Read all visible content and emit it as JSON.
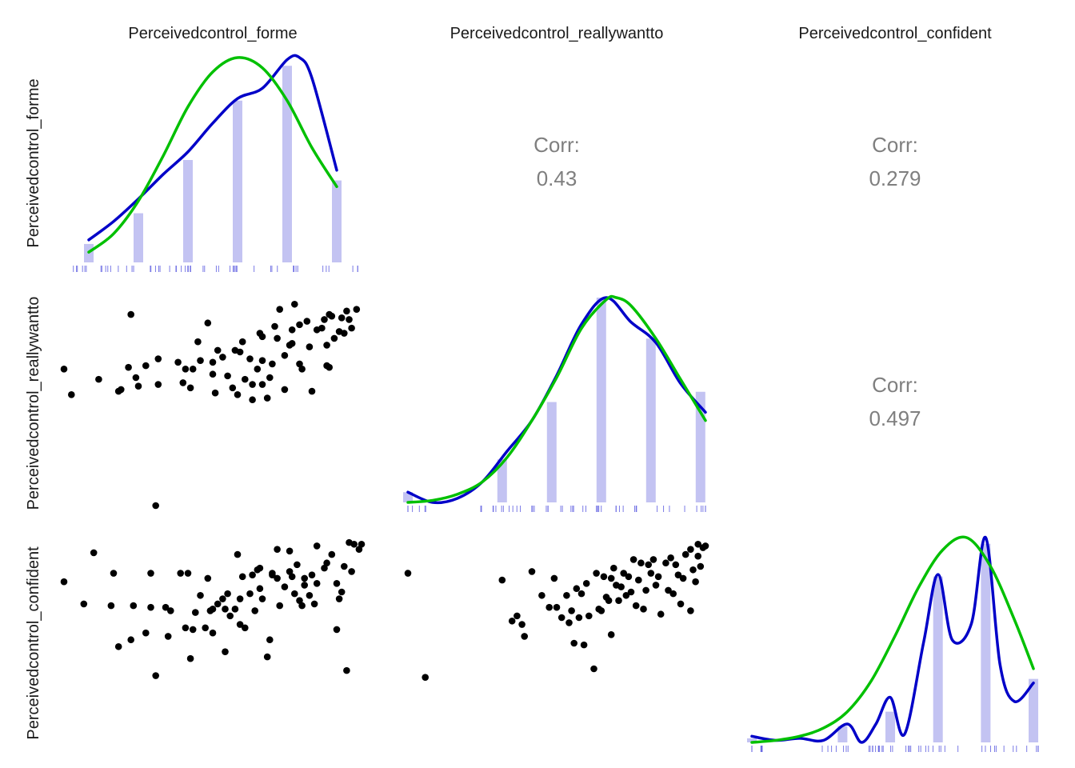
{
  "chart_data": {
    "type": "scatter",
    "subtype": "pairs-matrix",
    "variables": [
      "Perceivedcontrol_forme",
      "Perceivedcontrol_reallywantto",
      "Perceivedcontrol_confident"
    ],
    "grid": false,
    "axis_ticks_shown": false,
    "correlations": [
      {
        "row": "Perceivedcontrol_forme",
        "col": "Perceivedcontrol_reallywantto",
        "label": "Corr:",
        "value": "0.43"
      },
      {
        "row": "Perceivedcontrol_forme",
        "col": "Perceivedcontrol_confident",
        "label": "Corr:",
        "value": "0.279"
      },
      {
        "row": "Perceivedcontrol_reallywantto",
        "col": "Perceivedcontrol_confident",
        "label": "Corr:",
        "value": "0.497"
      }
    ],
    "diagonal": [
      {
        "variable": "Perceivedcontrol_forme",
        "range": [
          1,
          7
        ],
        "histogram": {
          "x": [
            1.5,
            2.5,
            3.5,
            4.5,
            5.5,
            6.5
          ],
          "relative_height": [
            0.09,
            0.24,
            0.5,
            0.79,
            0.96,
            0.4
          ]
        },
        "kde": {
          "x": [
            1.5,
            2,
            2.5,
            3,
            3.5,
            4,
            4.5,
            5,
            5.5,
            5.75,
            6,
            6.5
          ],
          "y": [
            0.11,
            0.2,
            0.31,
            0.43,
            0.54,
            0.68,
            0.8,
            0.85,
            0.99,
            1.0,
            0.9,
            0.45
          ]
        },
        "normal": {
          "x": [
            1.5,
            2,
            2.5,
            3,
            3.5,
            4,
            4.5,
            5,
            5.5,
            6,
            6.5
          ],
          "y": [
            0.05,
            0.14,
            0.3,
            0.52,
            0.76,
            0.93,
            1.0,
            0.95,
            0.79,
            0.56,
            0.37
          ]
        }
      },
      {
        "variable": "Perceivedcontrol_reallywantto",
        "range": [
          1,
          7
        ],
        "histogram": {
          "x": [
            1.0,
            2.9,
            3.9,
            4.9,
            5.9,
            6.9
          ],
          "relative_height": [
            0.05,
            0.21,
            0.49,
            1.0,
            0.8,
            0.54
          ]
        },
        "kde": {
          "x": [
            1.0,
            1.5,
            2.0,
            2.5,
            3.0,
            3.5,
            4.0,
            4.5,
            5.0,
            5.5,
            6.0,
            6.5,
            7.0
          ],
          "y": [
            0.05,
            0.0,
            0.02,
            0.1,
            0.25,
            0.4,
            0.62,
            0.87,
            1.0,
            0.88,
            0.78,
            0.58,
            0.44
          ]
        },
        "normal": {
          "x": [
            1.0,
            1.5,
            2.0,
            2.5,
            3.0,
            3.5,
            4.0,
            4.5,
            5.0,
            5.2,
            5.5,
            6.0,
            6.5,
            7.0
          ],
          "y": [
            0.0,
            0.01,
            0.04,
            0.1,
            0.22,
            0.4,
            0.61,
            0.85,
            0.99,
            1.0,
            0.96,
            0.8,
            0.6,
            0.4
          ]
        }
      },
      {
        "variable": "Perceivedcontrol_confident",
        "range": [
          1,
          7
        ],
        "histogram": {
          "x": [
            1.0,
            2.9,
            3.9,
            4.9,
            5.9,
            6.9
          ],
          "relative_height": [
            0.02,
            0.08,
            0.15,
            0.81,
            0.97,
            0.31
          ]
        },
        "kde": {
          "x": [
            1.0,
            1.5,
            2.0,
            2.5,
            3.0,
            3.3,
            3.6,
            3.9,
            4.2,
            4.6,
            4.9,
            5.2,
            5.6,
            5.9,
            6.2,
            6.5,
            6.9
          ],
          "y": [
            0.03,
            0.01,
            0.02,
            0.01,
            0.09,
            0.0,
            0.09,
            0.22,
            0.04,
            0.49,
            0.82,
            0.5,
            0.58,
            1.0,
            0.38,
            0.2,
            0.29
          ]
        },
        "normal": {
          "x": [
            1.0,
            1.5,
            2.0,
            2.5,
            3.0,
            3.5,
            4.0,
            4.5,
            5.0,
            5.5,
            6.0,
            6.5,
            6.9
          ],
          "y": [
            0.0,
            0.01,
            0.03,
            0.07,
            0.15,
            0.3,
            0.52,
            0.76,
            0.94,
            1.0,
            0.86,
            0.6,
            0.36
          ]
        }
      }
    ],
    "scatter_panels": [
      {
        "x_var": "Perceivedcontrol_forme",
        "y_var": "Perceivedcontrol_reallywantto",
        "points": [
          [
            1.0,
            5.0
          ],
          [
            1.15,
            4.25
          ],
          [
            1.7,
            4.7
          ],
          [
            2.1,
            4.35
          ],
          [
            2.15,
            4.4
          ],
          [
            2.3,
            5.05
          ],
          [
            2.35,
            6.6
          ],
          [
            2.45,
            4.75
          ],
          [
            2.5,
            4.5
          ],
          [
            2.65,
            5.1
          ],
          [
            2.9,
            4.55
          ],
          [
            2.85,
            1.0
          ],
          [
            2.9,
            5.3
          ],
          [
            3.3,
            5.2
          ],
          [
            3.4,
            4.6
          ],
          [
            3.45,
            5.0
          ],
          [
            3.55,
            4.45
          ],
          [
            3.9,
            6.35
          ],
          [
            4.0,
            4.85
          ],
          [
            4.1,
            5.55
          ],
          [
            4.4,
            4.45
          ],
          [
            4.45,
            5.55
          ],
          [
            4.0,
            5.2
          ],
          [
            4.05,
            4.3
          ],
          [
            3.6,
            5.0
          ],
          [
            3.7,
            5.8
          ],
          [
            4.5,
            4.25
          ],
          [
            4.8,
            4.1
          ],
          [
            4.75,
            5.3
          ],
          [
            4.95,
            6.05
          ],
          [
            5.0,
            5.25
          ],
          [
            5.15,
            4.75
          ],
          [
            5.0,
            4.55
          ],
          [
            5.25,
            6.25
          ],
          [
            5.3,
            5.9
          ],
          [
            5.45,
            5.4
          ],
          [
            5.6,
            6.15
          ],
          [
            5.45,
            4.4
          ],
          [
            5.55,
            5.7
          ],
          [
            5.9,
            6.4
          ],
          [
            5.75,
            6.3
          ],
          [
            5.95,
            5.65
          ],
          [
            6.0,
            4.35
          ],
          [
            6.1,
            6.15
          ],
          [
            6.3,
            5.1
          ],
          [
            6.25,
            6.45
          ],
          [
            6.3,
            5.7
          ],
          [
            6.55,
            6.1
          ],
          [
            6.6,
            6.5
          ],
          [
            6.8,
            6.2
          ],
          [
            6.35,
            6.6
          ],
          [
            6.75,
            6.45
          ],
          [
            6.7,
            6.7
          ],
          [
            6.65,
            6.05
          ],
          [
            6.45,
            5.9
          ],
          [
            6.2,
            6.2
          ],
          [
            6.35,
            5.05
          ],
          [
            5.75,
            5.15
          ],
          [
            5.35,
            6.75
          ],
          [
            5.65,
            6.9
          ],
          [
            5.0,
            5.95
          ],
          [
            4.9,
            5.0
          ],
          [
            4.55,
            5.5
          ],
          [
            4.3,
            4.8
          ],
          [
            3.75,
            5.25
          ],
          [
            4.65,
            4.7
          ],
          [
            4.8,
            4.55
          ],
          [
            5.2,
            5.15
          ],
          [
            5.8,
            5.0
          ],
          [
            6.4,
            6.55
          ],
          [
            6.9,
            6.75
          ],
          [
            4.2,
            5.35
          ],
          [
            4.6,
            5.8
          ],
          [
            5.1,
            4.15
          ],
          [
            5.6,
            5.75
          ]
        ]
      },
      {
        "x_var": "Perceivedcontrol_forme",
        "y_var": "Perceivedcontrol_confident",
        "points": [
          [
            1.0,
            5.8
          ],
          [
            1.4,
            5.15
          ],
          [
            1.6,
            6.65
          ],
          [
            2.0,
            6.05
          ],
          [
            1.95,
            5.1
          ],
          [
            2.4,
            5.1
          ],
          [
            2.35,
            4.1
          ],
          [
            2.65,
            4.3
          ],
          [
            2.75,
            6.05
          ],
          [
            2.85,
            3.05
          ],
          [
            2.75,
            5.05
          ],
          [
            3.05,
            5.05
          ],
          [
            3.15,
            4.95
          ],
          [
            3.35,
            6.05
          ],
          [
            3.45,
            4.45
          ],
          [
            3.5,
            6.05
          ],
          [
            3.55,
            3.55
          ],
          [
            3.65,
            4.9
          ],
          [
            3.75,
            5.4
          ],
          [
            3.6,
            4.4
          ],
          [
            3.85,
            4.45
          ],
          [
            3.9,
            5.9
          ],
          [
            3.95,
            4.95
          ],
          [
            4.0,
            4.3
          ],
          [
            4.1,
            5.15
          ],
          [
            4.2,
            5.3
          ],
          [
            4.25,
            3.75
          ],
          [
            4.3,
            5.45
          ],
          [
            4.35,
            4.8
          ],
          [
            4.45,
            5.0
          ],
          [
            4.55,
            5.3
          ],
          [
            4.6,
            5.95
          ],
          [
            4.65,
            4.45
          ],
          [
            4.75,
            5.45
          ],
          [
            4.85,
            4.95
          ],
          [
            4.9,
            6.15
          ],
          [
            4.95,
            5.6
          ],
          [
            4.8,
            6.0
          ],
          [
            5.0,
            5.3
          ],
          [
            5.15,
            4.1
          ],
          [
            5.1,
            3.6
          ],
          [
            5.2,
            6.0
          ],
          [
            5.3,
            5.9
          ],
          [
            5.35,
            5.1
          ],
          [
            5.45,
            5.65
          ],
          [
            5.55,
            6.1
          ],
          [
            5.6,
            5.95
          ],
          [
            5.65,
            5.45
          ],
          [
            5.75,
            5.25
          ],
          [
            5.7,
            6.3
          ],
          [
            5.8,
            5.1
          ],
          [
            5.85,
            5.7
          ],
          [
            5.95,
            5.4
          ],
          [
            6.0,
            6.0
          ],
          [
            6.1,
            5.75
          ],
          [
            6.05,
            5.15
          ],
          [
            6.25,
            6.2
          ],
          [
            6.3,
            6.35
          ],
          [
            6.4,
            6.6
          ],
          [
            6.5,
            5.75
          ],
          [
            6.55,
            5.3
          ],
          [
            6.6,
            5.5
          ],
          [
            6.75,
            6.95
          ],
          [
            6.8,
            6.1
          ],
          [
            6.85,
            6.9
          ],
          [
            6.95,
            6.75
          ],
          [
            6.65,
            6.25
          ],
          [
            7.0,
            6.9
          ],
          [
            4.5,
            6.6
          ],
          [
            5.3,
            6.75
          ],
          [
            4.25,
            5.0
          ],
          [
            5.55,
            6.7
          ],
          [
            6.1,
            6.85
          ],
          [
            6.7,
            3.2
          ],
          [
            5.2,
            6.05
          ],
          [
            4.95,
            6.2
          ],
          [
            3.1,
            4.2
          ],
          [
            4.0,
            5.0
          ],
          [
            6.5,
            4.4
          ],
          [
            5.85,
            5.9
          ],
          [
            2.1,
            3.9
          ],
          [
            4.55,
            4.55
          ]
        ]
      },
      {
        "x_var": "Perceivedcontrol_reallywantto",
        "y_var": "Perceivedcontrol_confident",
        "points": [
          [
            1.0,
            6.05
          ],
          [
            1.35,
            3.0
          ],
          [
            2.9,
            5.85
          ],
          [
            3.1,
            4.65
          ],
          [
            3.2,
            4.8
          ],
          [
            3.35,
            4.2
          ],
          [
            3.3,
            4.55
          ],
          [
            3.5,
            6.1
          ],
          [
            3.85,
            5.05
          ],
          [
            3.95,
            5.9
          ],
          [
            4.0,
            5.05
          ],
          [
            4.1,
            4.75
          ],
          [
            4.2,
            5.4
          ],
          [
            4.3,
            4.95
          ],
          [
            4.35,
            4.0
          ],
          [
            4.4,
            5.6
          ],
          [
            4.45,
            4.75
          ],
          [
            4.5,
            5.45
          ],
          [
            4.55,
            3.95
          ],
          [
            4.6,
            5.75
          ],
          [
            4.65,
            4.8
          ],
          [
            4.75,
            3.25
          ],
          [
            4.8,
            6.05
          ],
          [
            4.85,
            5.0
          ],
          [
            4.95,
            5.95
          ],
          [
            5.0,
            5.35
          ],
          [
            5.05,
            5.25
          ],
          [
            5.1,
            5.9
          ],
          [
            5.15,
            6.2
          ],
          [
            5.2,
            5.7
          ],
          [
            5.25,
            5.25
          ],
          [
            5.3,
            5.65
          ],
          [
            5.35,
            6.05
          ],
          [
            5.45,
            5.95
          ],
          [
            5.5,
            5.5
          ],
          [
            5.55,
            6.45
          ],
          [
            5.6,
            5.1
          ],
          [
            5.65,
            5.85
          ],
          [
            5.7,
            6.35
          ],
          [
            5.75,
            5.0
          ],
          [
            5.8,
            5.55
          ],
          [
            5.85,
            6.3
          ],
          [
            5.9,
            6.05
          ],
          [
            6.0,
            5.7
          ],
          [
            6.05,
            5.95
          ],
          [
            6.1,
            4.85
          ],
          [
            6.2,
            6.35
          ],
          [
            6.3,
            6.5
          ],
          [
            6.35,
            5.45
          ],
          [
            6.45,
            6.0
          ],
          [
            6.5,
            5.15
          ],
          [
            6.55,
            5.9
          ],
          [
            6.6,
            6.6
          ],
          [
            6.7,
            6.75
          ],
          [
            6.75,
            6.15
          ],
          [
            6.85,
            6.9
          ],
          [
            6.9,
            6.25
          ],
          [
            7.0,
            6.85
          ],
          [
            6.85,
            6.55
          ],
          [
            6.95,
            6.8
          ],
          [
            6.7,
            4.95
          ],
          [
            5.1,
            4.25
          ],
          [
            4.9,
            4.95
          ],
          [
            5.4,
            5.4
          ],
          [
            4.25,
            4.6
          ],
          [
            3.7,
            5.4
          ],
          [
            5.95,
            6.45
          ],
          [
            6.25,
            5.55
          ],
          [
            6.4,
            6.3
          ],
          [
            6.8,
            5.8
          ]
        ]
      }
    ]
  }
}
